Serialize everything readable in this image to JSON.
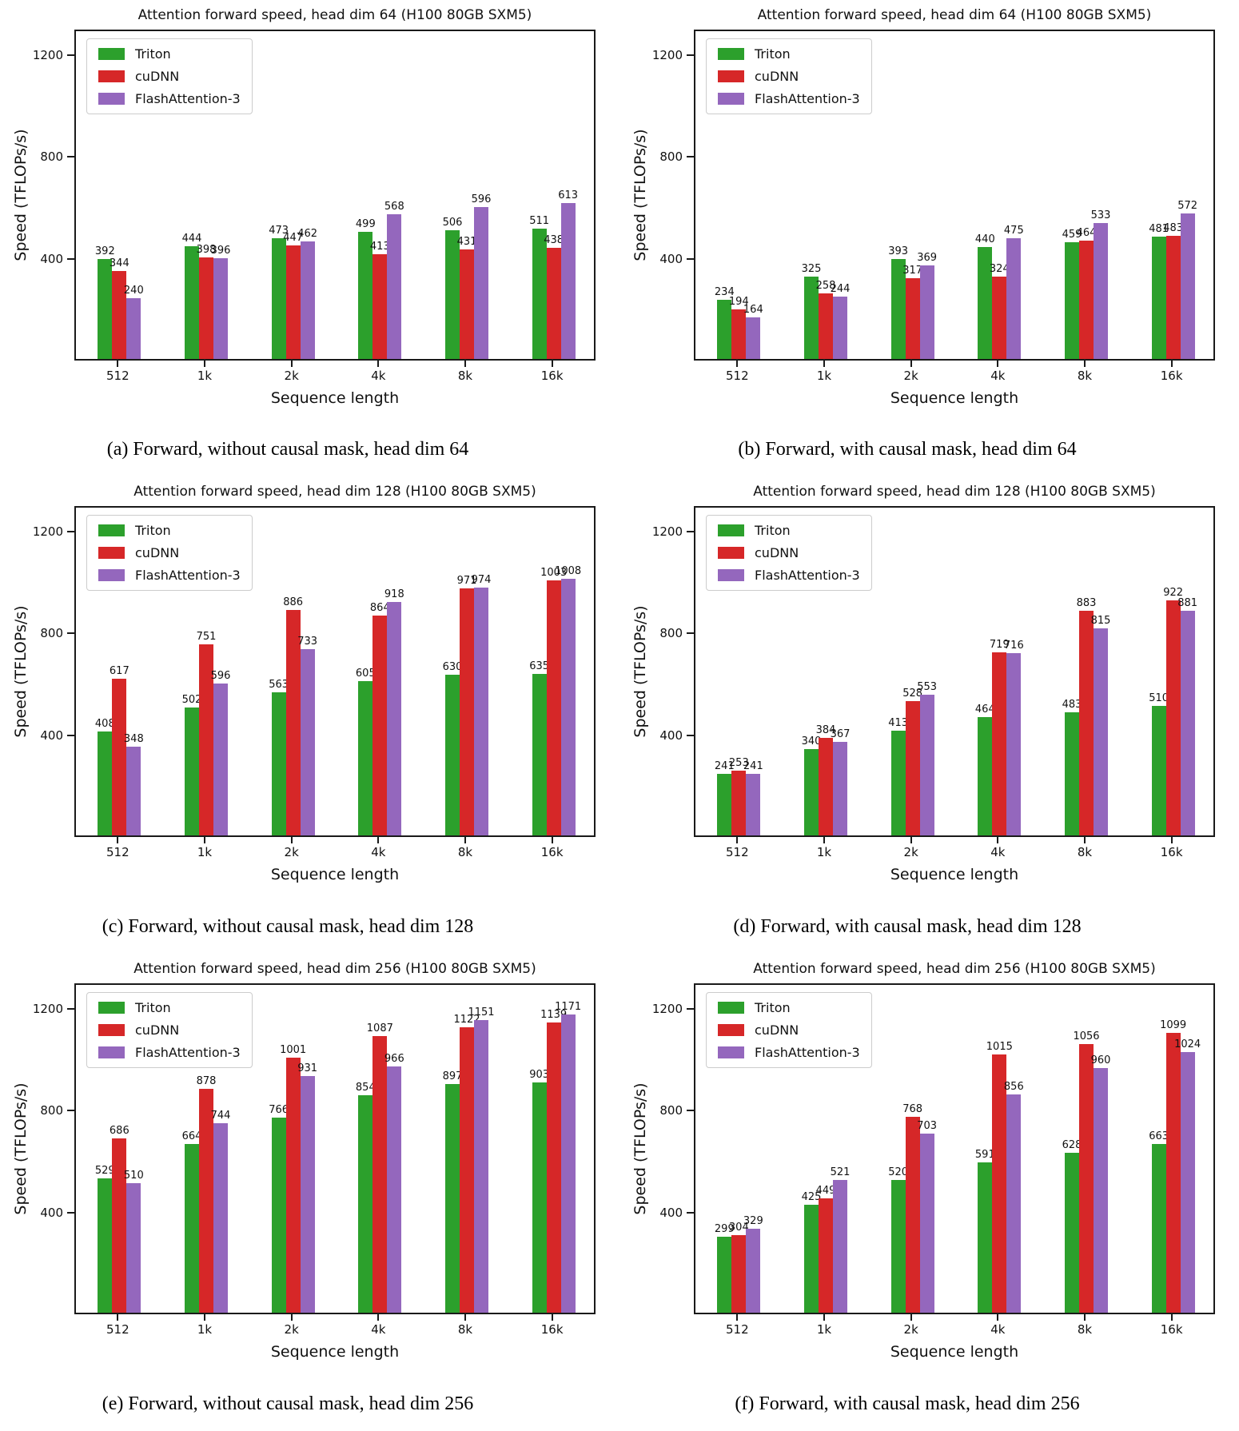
{
  "chart_data": [
    {
      "id": "a",
      "type": "bar",
      "title": "Attention forward speed, head dim 64 (H100 80GB SXM5)",
      "caption": "(a) Forward, without causal mask, head dim 64",
      "xlabel": "Sequence length",
      "ylabel": "Speed (TFLOPs/s)",
      "categories": [
        "512",
        "1k",
        "2k",
        "4k",
        "8k",
        "16k"
      ],
      "yticks": [
        400,
        800,
        1200
      ],
      "ylim": [
        0,
        1300
      ],
      "grid": false,
      "legend_position": "upper left",
      "series": [
        {
          "name": "Triton",
          "color": "#2ca02c",
          "values": [
            392,
            444,
            473,
            499,
            506,
            511
          ]
        },
        {
          "name": "cuDNN",
          "color": "#d62728",
          "values": [
            344,
            398,
            447,
            413,
            431,
            438
          ]
        },
        {
          "name": "FlashAttention-3",
          "color": "#9467bd",
          "values": [
            240,
            396,
            462,
            568,
            596,
            613
          ]
        }
      ]
    },
    {
      "id": "b",
      "type": "bar",
      "title": "Attention forward speed, head dim 64 (H100 80GB SXM5)",
      "caption": "(b) Forward, with causal mask, head dim 64",
      "xlabel": "Sequence length",
      "ylabel": "Speed (TFLOPs/s)",
      "categories": [
        "512",
        "1k",
        "2k",
        "4k",
        "8k",
        "16k"
      ],
      "yticks": [
        400,
        800,
        1200
      ],
      "ylim": [
        0,
        1300
      ],
      "grid": false,
      "legend_position": "upper left",
      "series": [
        {
          "name": "Triton",
          "color": "#2ca02c",
          "values": [
            234,
            325,
            393,
            440,
            459,
            481
          ]
        },
        {
          "name": "cuDNN",
          "color": "#d62728",
          "values": [
            194,
            258,
            317,
            324,
            464,
            483
          ]
        },
        {
          "name": "FlashAttention-3",
          "color": "#9467bd",
          "values": [
            164,
            244,
            369,
            475,
            533,
            572
          ]
        }
      ]
    },
    {
      "id": "c",
      "type": "bar",
      "title": "Attention forward speed, head dim 128 (H100 80GB SXM5)",
      "caption": "(c) Forward, without causal mask, head dim 128",
      "xlabel": "Sequence length",
      "ylabel": "Speed (TFLOPs/s)",
      "categories": [
        "512",
        "1k",
        "2k",
        "4k",
        "8k",
        "16k"
      ],
      "yticks": [
        400,
        800,
        1200
      ],
      "ylim": [
        0,
        1300
      ],
      "grid": false,
      "legend_position": "upper left",
      "series": [
        {
          "name": "Triton",
          "color": "#2ca02c",
          "values": [
            408,
            502,
            563,
            605,
            630,
            635
          ]
        },
        {
          "name": "cuDNN",
          "color": "#d62728",
          "values": [
            617,
            751,
            886,
            864,
            971,
            1003
          ]
        },
        {
          "name": "FlashAttention-3",
          "color": "#9467bd",
          "values": [
            348,
            596,
            733,
            918,
            974,
            1008
          ]
        }
      ]
    },
    {
      "id": "d",
      "type": "bar",
      "title": "Attention forward speed, head dim 128 (H100 80GB SXM5)",
      "caption": "(d) Forward, with causal mask, head dim 128",
      "xlabel": "Sequence length",
      "ylabel": "Speed (TFLOPs/s)",
      "categories": [
        "512",
        "1k",
        "2k",
        "4k",
        "8k",
        "16k"
      ],
      "yticks": [
        400,
        800,
        1200
      ],
      "ylim": [
        0,
        1300
      ],
      "grid": false,
      "legend_position": "upper left",
      "series": [
        {
          "name": "Triton",
          "color": "#2ca02c",
          "values": [
            241,
            340,
            413,
            464,
            483,
            510
          ]
        },
        {
          "name": "cuDNN",
          "color": "#d62728",
          "values": [
            253,
            384,
            528,
            719,
            883,
            922
          ]
        },
        {
          "name": "FlashAttention-3",
          "color": "#9467bd",
          "values": [
            241,
            367,
            553,
            716,
            815,
            881
          ]
        }
      ]
    },
    {
      "id": "e",
      "type": "bar",
      "title": "Attention forward speed, head dim 256 (H100 80GB SXM5)",
      "caption": "(e) Forward, without causal mask, head dim 256",
      "xlabel": "Sequence length",
      "ylabel": "Speed (TFLOPs/s)",
      "categories": [
        "512",
        "1k",
        "2k",
        "4k",
        "8k",
        "16k"
      ],
      "yticks": [
        400,
        800,
        1200
      ],
      "ylim": [
        0,
        1300
      ],
      "grid": false,
      "legend_position": "upper left",
      "series": [
        {
          "name": "Triton",
          "color": "#2ca02c",
          "values": [
            529,
            664,
            766,
            854,
            897,
            903
          ]
        },
        {
          "name": "cuDNN",
          "color": "#d62728",
          "values": [
            686,
            878,
            1001,
            1087,
            1122,
            1139
          ]
        },
        {
          "name": "FlashAttention-3",
          "color": "#9467bd",
          "values": [
            510,
            744,
            931,
            966,
            1151,
            1171
          ]
        }
      ]
    },
    {
      "id": "f",
      "type": "bar",
      "title": "Attention forward speed, head dim 256 (H100 80GB SXM5)",
      "caption": "(f) Forward, with causal mask, head dim 256",
      "xlabel": "Sequence length",
      "ylabel": "Speed (TFLOPs/s)",
      "categories": [
        "512",
        "1k",
        "2k",
        "4k",
        "8k",
        "16k"
      ],
      "yticks": [
        400,
        800,
        1200
      ],
      "ylim": [
        0,
        1300
      ],
      "grid": false,
      "legend_position": "upper left",
      "series": [
        {
          "name": "Triton",
          "color": "#2ca02c",
          "values": [
            299,
            425,
            520,
            591,
            628,
            663
          ]
        },
        {
          "name": "cuDNN",
          "color": "#d62728",
          "values": [
            304,
            449,
            768,
            1015,
            1056,
            1099
          ]
        },
        {
          "name": "FlashAttention-3",
          "color": "#9467bd",
          "values": [
            329,
            521,
            703,
            856,
            960,
            1024
          ]
        }
      ]
    }
  ]
}
